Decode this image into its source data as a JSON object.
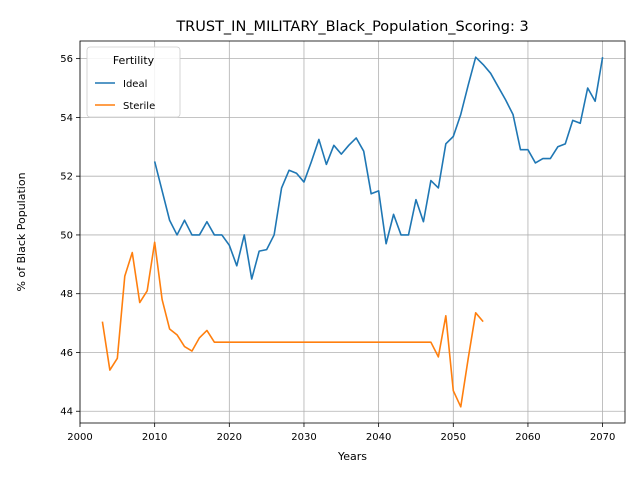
{
  "chart_data": {
    "type": "line",
    "title": "TRUST_IN_MILITARY_Black_Population_Scoring: 3",
    "xlabel": "Years",
    "ylabel": "% of Black Population",
    "xlim": [
      2000,
      2073
    ],
    "ylim": [
      43.6,
      56.6
    ],
    "xticks": [
      2000,
      2010,
      2020,
      2030,
      2040,
      2050,
      2060,
      2070
    ],
    "yticks": [
      44,
      46,
      48,
      50,
      52,
      54,
      56
    ],
    "grid": true,
    "legend": {
      "title": "Fertility",
      "placement": "top-left"
    },
    "series": [
      {
        "name": "Ideal",
        "color": "#1f77b4",
        "points": [
          [
            2010,
            52.5
          ],
          [
            2011,
            51.5
          ],
          [
            2012,
            50.5
          ],
          [
            2013,
            50.0
          ],
          [
            2014,
            50.5
          ],
          [
            2015,
            50.0
          ],
          [
            2016,
            50.0
          ],
          [
            2017,
            50.45
          ],
          [
            2018,
            50.0
          ],
          [
            2019,
            50.0
          ],
          [
            2020,
            49.65
          ],
          [
            2021,
            48.95
          ],
          [
            2022,
            50.0
          ],
          [
            2023,
            48.5
          ],
          [
            2024,
            49.45
          ],
          [
            2025,
            49.5
          ],
          [
            2026,
            50.0
          ],
          [
            2027,
            51.6
          ],
          [
            2028,
            52.2
          ],
          [
            2029,
            52.1
          ],
          [
            2030,
            51.8
          ],
          [
            2031,
            52.5
          ],
          [
            2032,
            53.25
          ],
          [
            2033,
            52.4
          ],
          [
            2034,
            53.05
          ],
          [
            2035,
            52.75
          ],
          [
            2036,
            53.05
          ],
          [
            2037,
            53.3
          ],
          [
            2038,
            52.85
          ],
          [
            2039,
            51.4
          ],
          [
            2040,
            51.5
          ],
          [
            2041,
            49.7
          ],
          [
            2042,
            50.7
          ],
          [
            2043,
            50.0
          ],
          [
            2044,
            50.0
          ],
          [
            2045,
            51.2
          ],
          [
            2046,
            50.45
          ],
          [
            2047,
            51.85
          ],
          [
            2048,
            51.6
          ],
          [
            2049,
            53.1
          ],
          [
            2050,
            53.35
          ],
          [
            2051,
            54.1
          ],
          [
            2052,
            55.1
          ],
          [
            2053,
            56.05
          ],
          [
            2054,
            55.8
          ],
          [
            2055,
            55.5
          ],
          [
            2056,
            55.05
          ],
          [
            2057,
            54.6
          ],
          [
            2058,
            54.1
          ],
          [
            2059,
            52.9
          ],
          [
            2060,
            52.9
          ],
          [
            2061,
            52.45
          ],
          [
            2062,
            52.6
          ],
          [
            2063,
            52.6
          ],
          [
            2064,
            53.0
          ],
          [
            2065,
            53.1
          ],
          [
            2066,
            53.9
          ],
          [
            2067,
            53.8
          ],
          [
            2068,
            55.0
          ],
          [
            2069,
            54.55
          ],
          [
            2070,
            56.05
          ]
        ]
      },
      {
        "name": "Sterile",
        "color": "#ff7f0e",
        "points": [
          [
            2003,
            47.05
          ],
          [
            2004,
            45.4
          ],
          [
            2005,
            45.8
          ],
          [
            2006,
            48.6
          ],
          [
            2007,
            49.4
          ],
          [
            2008,
            47.7
          ],
          [
            2009,
            48.1
          ],
          [
            2010,
            49.75
          ],
          [
            2011,
            47.8
          ],
          [
            2012,
            46.8
          ],
          [
            2013,
            46.6
          ],
          [
            2014,
            46.2
          ],
          [
            2015,
            46.05
          ],
          [
            2016,
            46.5
          ],
          [
            2017,
            46.75
          ],
          [
            2018,
            46.35
          ],
          [
            2019,
            46.35
          ],
          [
            2020,
            46.35
          ],
          [
            2021,
            46.35
          ],
          [
            2022,
            46.35
          ],
          [
            2023,
            46.35
          ],
          [
            2024,
            46.35
          ],
          [
            2025,
            46.35
          ],
          [
            2026,
            46.35
          ],
          [
            2027,
            46.35
          ],
          [
            2028,
            46.35
          ],
          [
            2029,
            46.35
          ],
          [
            2030,
            46.35
          ],
          [
            2031,
            46.35
          ],
          [
            2032,
            46.35
          ],
          [
            2033,
            46.35
          ],
          [
            2034,
            46.35
          ],
          [
            2035,
            46.35
          ],
          [
            2036,
            46.35
          ],
          [
            2037,
            46.35
          ],
          [
            2038,
            46.35
          ],
          [
            2039,
            46.35
          ],
          [
            2040,
            46.35
          ],
          [
            2041,
            46.35
          ],
          [
            2042,
            46.35
          ],
          [
            2043,
            46.35
          ],
          [
            2044,
            46.35
          ],
          [
            2045,
            46.35
          ],
          [
            2046,
            46.35
          ],
          [
            2047,
            46.35
          ],
          [
            2048,
            45.85
          ],
          [
            2049,
            47.25
          ],
          [
            2050,
            44.7
          ],
          [
            2051,
            44.15
          ],
          [
            2052,
            45.8
          ],
          [
            2053,
            47.35
          ],
          [
            2054,
            47.05
          ]
        ]
      }
    ]
  }
}
